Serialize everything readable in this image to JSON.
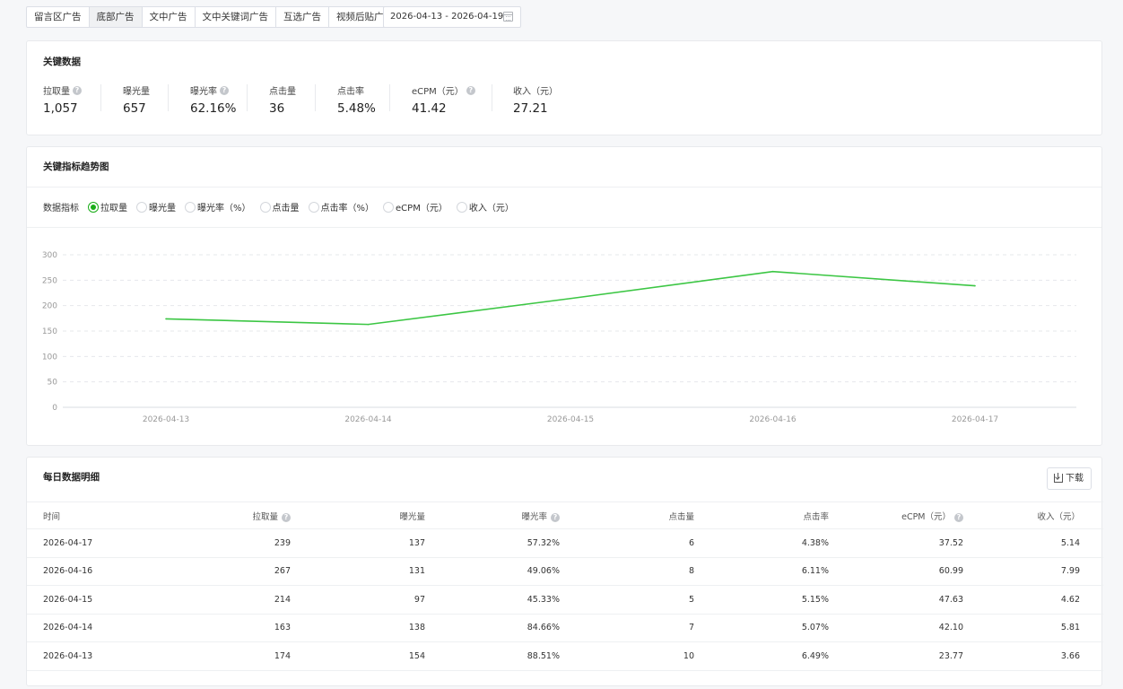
{
  "tabs": [
    "留言区广告",
    "底部广告",
    "文中广告",
    "文中关键词广告",
    "互选广告",
    "视频后贴广告"
  ],
  "active_tab": 1,
  "date_range": "2026-04-13 - 2026-04-19",
  "key_data": {
    "title": "关键数据",
    "metrics": [
      {
        "label": "拉取量",
        "value": "1,057",
        "help": true
      },
      {
        "label": "曝光量",
        "value": "657",
        "help": false
      },
      {
        "label": "曝光率",
        "value": "62.16%",
        "help": true
      },
      {
        "label": "点击量",
        "value": "36",
        "help": false
      },
      {
        "label": "点击率",
        "value": "5.48%",
        "help": false
      },
      {
        "label": "eCPM（元）",
        "value": "41.42",
        "help": true
      },
      {
        "label": "收入（元）",
        "value": "27.21",
        "help": false
      }
    ]
  },
  "trend": {
    "title": "关键指标趋势图",
    "indicator_label": "数据指标",
    "options": [
      "拉取量",
      "曝光量",
      "曝光率（%）",
      "点击量",
      "点击率（%）",
      "eCPM（元）",
      "收入（元）"
    ],
    "selected": 0
  },
  "chart_data": {
    "type": "line",
    "x": [
      "2026-04-13",
      "2026-04-14",
      "2026-04-15",
      "2026-04-16",
      "2026-04-17"
    ],
    "series": [
      {
        "values": [
          174,
          163,
          214,
          267,
          239
        ]
      }
    ],
    "yticks": [
      0,
      50,
      100,
      150,
      200,
      250,
      300
    ],
    "ylim": [
      0,
      300
    ],
    "grid": true,
    "line_color": "#3cc644"
  },
  "table": {
    "title": "每日数据明细",
    "download_label": "下载",
    "columns": [
      {
        "label": "时间",
        "help": false
      },
      {
        "label": "拉取量",
        "help": true
      },
      {
        "label": "曝光量",
        "help": false
      },
      {
        "label": "曝光率",
        "help": true
      },
      {
        "label": "点击量",
        "help": false
      },
      {
        "label": "点击率",
        "help": false
      },
      {
        "label": "eCPM（元）",
        "help": true
      },
      {
        "label": "收入（元）",
        "help": false
      }
    ],
    "rows": [
      [
        "2026-04-17",
        "239",
        "137",
        "57.32%",
        "6",
        "4.38%",
        "37.52",
        "5.14"
      ],
      [
        "2026-04-16",
        "267",
        "131",
        "49.06%",
        "8",
        "6.11%",
        "60.99",
        "7.99"
      ],
      [
        "2026-04-15",
        "214",
        "97",
        "45.33%",
        "5",
        "5.15%",
        "47.63",
        "4.62"
      ],
      [
        "2026-04-14",
        "163",
        "138",
        "84.66%",
        "7",
        "5.07%",
        "42.10",
        "5.81"
      ],
      [
        "2026-04-13",
        "174",
        "154",
        "88.51%",
        "10",
        "6.49%",
        "23.77",
        "3.66"
      ]
    ]
  }
}
